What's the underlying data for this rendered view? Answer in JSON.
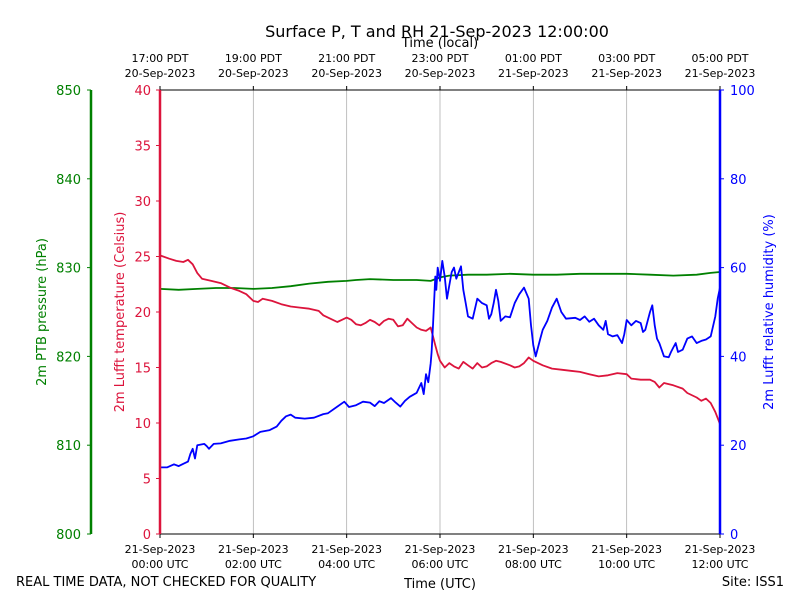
{
  "chart_data": {
    "type": "line",
    "title": "Surface P, T and RH 21-Sep-2023 12:00:00",
    "top_axis_label": "Time (local)",
    "bottom_axis_label": "Time (UTC)",
    "footer_left": "REAL TIME DATA, NOT CHECKED FOR QUALITY",
    "footer_right": "Site: ISS1",
    "x_unit": "hours since 21-Sep-2023 00:00 UTC",
    "xlim": [
      0,
      12
    ],
    "grid": "vertical",
    "bottom_ticks": [
      {
        "x": 0,
        "line1": "21-Sep-2023",
        "line2": "00:00 UTC"
      },
      {
        "x": 2,
        "line1": "21-Sep-2023",
        "line2": "02:00 UTC"
      },
      {
        "x": 4,
        "line1": "21-Sep-2023",
        "line2": "04:00 UTC"
      },
      {
        "x": 6,
        "line1": "21-Sep-2023",
        "line2": "06:00 UTC"
      },
      {
        "x": 8,
        "line1": "21-Sep-2023",
        "line2": "08:00 UTC"
      },
      {
        "x": 10,
        "line1": "21-Sep-2023",
        "line2": "10:00 UTC"
      },
      {
        "x": 12,
        "line1": "21-Sep-2023",
        "line2": "12:00 UTC"
      }
    ],
    "top_ticks": [
      {
        "x": 0,
        "line1": "17:00 PDT",
        "line2": "20-Sep-2023"
      },
      {
        "x": 2,
        "line1": "19:00 PDT",
        "line2": "20-Sep-2023"
      },
      {
        "x": 4,
        "line1": "21:00 PDT",
        "line2": "20-Sep-2023"
      },
      {
        "x": 6,
        "line1": "23:00 PDT",
        "line2": "20-Sep-2023"
      },
      {
        "x": 8,
        "line1": "01:00 PDT",
        "line2": "21-Sep-2023"
      },
      {
        "x": 10,
        "line1": "03:00 PDT",
        "line2": "21-Sep-2023"
      },
      {
        "x": 12,
        "line1": "05:00 PDT",
        "line2": "21-Sep-2023"
      }
    ],
    "axes": {
      "pressure": {
        "label": "2m PTB pressure (hPa)",
        "ylim": [
          800,
          850
        ],
        "ticks": [
          800,
          810,
          820,
          830,
          840,
          850
        ],
        "color": "#008000",
        "position": "outer-left"
      },
      "temperature": {
        "label": "2m Lufft temperature (Celsius)",
        "ylim": [
          0,
          40
        ],
        "ticks": [
          0,
          5,
          10,
          15,
          20,
          25,
          30,
          35,
          40
        ],
        "color": "#dc143c",
        "position": "left"
      },
      "humidity": {
        "label": "2m Lufft relative humidity (%)",
        "ylim": [
          0,
          100
        ],
        "ticks": [
          0,
          20,
          40,
          60,
          80,
          100
        ],
        "color": "#0000ff",
        "position": "right"
      }
    },
    "series": [
      {
        "axis": "pressure",
        "color": "#008000",
        "points": [
          [
            0,
            827.6
          ],
          [
            0.4,
            827.5
          ],
          [
            0.8,
            827.6
          ],
          [
            1.2,
            827.7
          ],
          [
            1.6,
            827.7
          ],
          [
            2.0,
            827.6
          ],
          [
            2.4,
            827.7
          ],
          [
            2.8,
            827.9
          ],
          [
            3.2,
            828.2
          ],
          [
            3.6,
            828.4
          ],
          [
            4.0,
            828.5
          ],
          [
            4.2,
            828.6
          ],
          [
            4.5,
            828.7
          ],
          [
            5.0,
            828.6
          ],
          [
            5.5,
            828.6
          ],
          [
            5.8,
            828.5
          ],
          [
            6.0,
            828.9
          ],
          [
            6.2,
            829.1
          ],
          [
            6.6,
            829.2
          ],
          [
            7.0,
            829.2
          ],
          [
            7.5,
            829.3
          ],
          [
            8.0,
            829.2
          ],
          [
            8.5,
            829.2
          ],
          [
            9.0,
            829.3
          ],
          [
            9.5,
            829.3
          ],
          [
            10.0,
            829.3
          ],
          [
            10.5,
            829.2
          ],
          [
            11.0,
            829.1
          ],
          [
            11.5,
            829.2
          ],
          [
            11.8,
            829.4
          ],
          [
            12.0,
            829.5
          ]
        ]
      },
      {
        "axis": "temperature",
        "color": "#dc143c",
        "points": [
          [
            0,
            25.1
          ],
          [
            0.2,
            24.8
          ],
          [
            0.35,
            24.6
          ],
          [
            0.5,
            24.5
          ],
          [
            0.6,
            24.7
          ],
          [
            0.7,
            24.3
          ],
          [
            0.8,
            23.5
          ],
          [
            0.9,
            23.0
          ],
          [
            1.1,
            22.8
          ],
          [
            1.3,
            22.6
          ],
          [
            1.5,
            22.2
          ],
          [
            1.7,
            21.9
          ],
          [
            1.85,
            21.6
          ],
          [
            2.0,
            21.0
          ],
          [
            2.1,
            20.9
          ],
          [
            2.2,
            21.2
          ],
          [
            2.4,
            21.0
          ],
          [
            2.6,
            20.7
          ],
          [
            2.8,
            20.5
          ],
          [
            3.0,
            20.4
          ],
          [
            3.2,
            20.3
          ],
          [
            3.4,
            20.1
          ],
          [
            3.5,
            19.7
          ],
          [
            3.6,
            19.5
          ],
          [
            3.7,
            19.3
          ],
          [
            3.8,
            19.1
          ],
          [
            3.9,
            19.3
          ],
          [
            4.0,
            19.5
          ],
          [
            4.1,
            19.3
          ],
          [
            4.2,
            18.9
          ],
          [
            4.3,
            18.8
          ],
          [
            4.4,
            19.0
          ],
          [
            4.5,
            19.3
          ],
          [
            4.6,
            19.1
          ],
          [
            4.7,
            18.8
          ],
          [
            4.8,
            19.2
          ],
          [
            4.9,
            19.4
          ],
          [
            5.0,
            19.3
          ],
          [
            5.1,
            18.7
          ],
          [
            5.2,
            18.8
          ],
          [
            5.3,
            19.4
          ],
          [
            5.4,
            19.0
          ],
          [
            5.5,
            18.6
          ],
          [
            5.6,
            18.4
          ],
          [
            5.7,
            18.3
          ],
          [
            5.8,
            18.6
          ],
          [
            5.85,
            17.8
          ],
          [
            5.9,
            17.0
          ],
          [
            5.95,
            16.2
          ],
          [
            6.0,
            15.6
          ],
          [
            6.1,
            15.0
          ],
          [
            6.2,
            15.4
          ],
          [
            6.3,
            15.1
          ],
          [
            6.4,
            14.9
          ],
          [
            6.5,
            15.5
          ],
          [
            6.6,
            15.2
          ],
          [
            6.7,
            14.9
          ],
          [
            6.8,
            15.4
          ],
          [
            6.9,
            15.0
          ],
          [
            7.0,
            15.1
          ],
          [
            7.1,
            15.4
          ],
          [
            7.2,
            15.6
          ],
          [
            7.3,
            15.5
          ],
          [
            7.5,
            15.2
          ],
          [
            7.6,
            15.0
          ],
          [
            7.7,
            15.1
          ],
          [
            7.8,
            15.4
          ],
          [
            7.9,
            15.9
          ],
          [
            8.0,
            15.6
          ],
          [
            8.2,
            15.2
          ],
          [
            8.4,
            14.9
          ],
          [
            8.6,
            14.8
          ],
          [
            8.8,
            14.7
          ],
          [
            9.0,
            14.6
          ],
          [
            9.2,
            14.4
          ],
          [
            9.4,
            14.2
          ],
          [
            9.6,
            14.3
          ],
          [
            9.8,
            14.5
          ],
          [
            10.0,
            14.4
          ],
          [
            10.1,
            14.0
          ],
          [
            10.3,
            13.9
          ],
          [
            10.5,
            13.9
          ],
          [
            10.6,
            13.7
          ],
          [
            10.7,
            13.2
          ],
          [
            10.8,
            13.6
          ],
          [
            11.0,
            13.4
          ],
          [
            11.2,
            13.1
          ],
          [
            11.3,
            12.7
          ],
          [
            11.5,
            12.3
          ],
          [
            11.6,
            12.0
          ],
          [
            11.7,
            12.2
          ],
          [
            11.8,
            11.8
          ],
          [
            11.9,
            11.0
          ],
          [
            12.0,
            9.9
          ]
        ]
      },
      {
        "axis": "humidity",
        "color": "#0000ff",
        "points": [
          [
            0,
            15.0
          ],
          [
            0.15,
            15.0
          ],
          [
            0.3,
            15.7
          ],
          [
            0.4,
            15.3
          ],
          [
            0.5,
            15.8
          ],
          [
            0.6,
            16.3
          ],
          [
            0.65,
            18.0
          ],
          [
            0.7,
            19.2
          ],
          [
            0.75,
            17.0
          ],
          [
            0.8,
            20.0
          ],
          [
            0.95,
            20.3
          ],
          [
            1.0,
            19.8
          ],
          [
            1.05,
            19.2
          ],
          [
            1.15,
            20.3
          ],
          [
            1.3,
            20.4
          ],
          [
            1.5,
            21.0
          ],
          [
            1.7,
            21.3
          ],
          [
            1.85,
            21.5
          ],
          [
            2.0,
            22.0
          ],
          [
            2.15,
            23.0
          ],
          [
            2.35,
            23.4
          ],
          [
            2.5,
            24.2
          ],
          [
            2.6,
            25.5
          ],
          [
            2.7,
            26.5
          ],
          [
            2.8,
            26.9
          ],
          [
            2.9,
            26.2
          ],
          [
            3.1,
            26.0
          ],
          [
            3.3,
            26.2
          ],
          [
            3.5,
            27.0
          ],
          [
            3.6,
            27.2
          ],
          [
            3.8,
            28.7
          ],
          [
            3.95,
            29.8
          ],
          [
            4.05,
            28.6
          ],
          [
            4.2,
            29.0
          ],
          [
            4.35,
            29.8
          ],
          [
            4.5,
            29.6
          ],
          [
            4.6,
            28.8
          ],
          [
            4.7,
            29.9
          ],
          [
            4.8,
            29.5
          ],
          [
            4.95,
            30.6
          ],
          [
            5.05,
            29.6
          ],
          [
            5.15,
            28.7
          ],
          [
            5.25,
            30.0
          ],
          [
            5.35,
            30.9
          ],
          [
            5.5,
            31.8
          ],
          [
            5.6,
            34.0
          ],
          [
            5.65,
            31.5
          ],
          [
            5.7,
            36.0
          ],
          [
            5.75,
            34.2
          ],
          [
            5.8,
            38.5
          ],
          [
            5.82,
            41.0
          ],
          [
            5.85,
            47.0
          ],
          [
            5.9,
            58.0
          ],
          [
            5.92,
            55.0
          ],
          [
            5.95,
            60.0
          ],
          [
            6.0,
            57.0
          ],
          [
            6.05,
            61.5
          ],
          [
            6.1,
            58.0
          ],
          [
            6.15,
            53.0
          ],
          [
            6.2,
            56.0
          ],
          [
            6.25,
            59.0
          ],
          [
            6.3,
            60.0
          ],
          [
            6.35,
            57.5
          ],
          [
            6.45,
            60.3
          ],
          [
            6.5,
            55.0
          ],
          [
            6.55,
            52.0
          ],
          [
            6.6,
            49.0
          ],
          [
            6.7,
            48.5
          ],
          [
            6.8,
            53.0
          ],
          [
            6.9,
            52.0
          ],
          [
            7.0,
            51.5
          ],
          [
            7.05,
            48.5
          ],
          [
            7.1,
            49.5
          ],
          [
            7.15,
            52.0
          ],
          [
            7.2,
            55.0
          ],
          [
            7.25,
            52.5
          ],
          [
            7.3,
            48.0
          ],
          [
            7.4,
            49.0
          ],
          [
            7.5,
            48.8
          ],
          [
            7.6,
            52.0
          ],
          [
            7.7,
            54.0
          ],
          [
            7.8,
            55.5
          ],
          [
            7.9,
            53.0
          ],
          [
            7.95,
            47.0
          ],
          [
            8.0,
            42.5
          ],
          [
            8.05,
            40.0
          ],
          [
            8.1,
            42.0
          ],
          [
            8.15,
            44.0
          ],
          [
            8.2,
            46.0
          ],
          [
            8.3,
            48.0
          ],
          [
            8.4,
            51.0
          ],
          [
            8.5,
            53.0
          ],
          [
            8.6,
            50.0
          ],
          [
            8.7,
            48.5
          ],
          [
            8.9,
            48.7
          ],
          [
            9.0,
            48.2
          ],
          [
            9.1,
            49.0
          ],
          [
            9.2,
            47.8
          ],
          [
            9.3,
            48.5
          ],
          [
            9.4,
            47.0
          ],
          [
            9.5,
            46.0
          ],
          [
            9.55,
            48.0
          ],
          [
            9.6,
            45.0
          ],
          [
            9.7,
            44.5
          ],
          [
            9.8,
            44.8
          ],
          [
            9.9,
            43.0
          ],
          [
            9.95,
            45.0
          ],
          [
            10.0,
            48.2
          ],
          [
            10.1,
            47.0
          ],
          [
            10.2,
            48.0
          ],
          [
            10.3,
            47.5
          ],
          [
            10.35,
            45.5
          ],
          [
            10.4,
            46.0
          ],
          [
            10.5,
            50.0
          ],
          [
            10.55,
            51.5
          ],
          [
            10.6,
            47.0
          ],
          [
            10.65,
            44.0
          ],
          [
            10.7,
            43.0
          ],
          [
            10.8,
            40.0
          ],
          [
            10.9,
            39.8
          ],
          [
            10.95,
            41.0
          ],
          [
            11.0,
            42.0
          ],
          [
            11.05,
            43.0
          ],
          [
            11.1,
            41.0
          ],
          [
            11.2,
            41.5
          ],
          [
            11.3,
            44.0
          ],
          [
            11.4,
            44.5
          ],
          [
            11.5,
            43.0
          ],
          [
            11.6,
            43.5
          ],
          [
            11.7,
            43.8
          ],
          [
            11.8,
            44.5
          ],
          [
            11.9,
            49.0
          ],
          [
            11.95,
            53.0
          ],
          [
            12.0,
            55.5
          ]
        ]
      }
    ]
  }
}
